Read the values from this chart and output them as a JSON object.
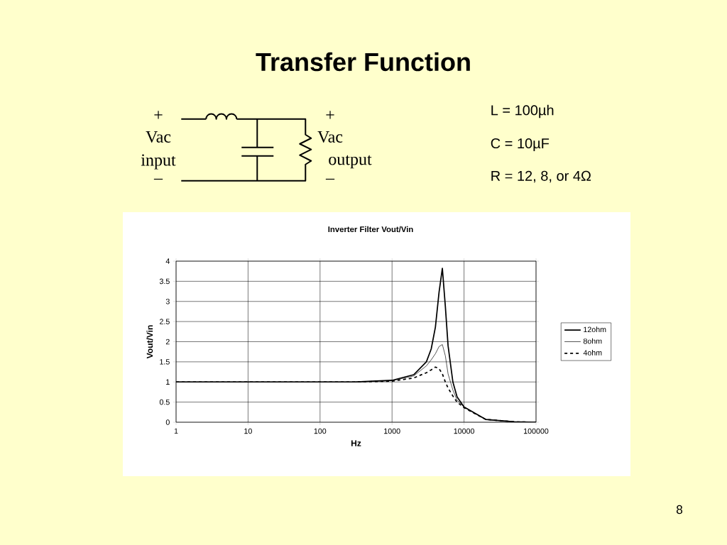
{
  "chart_data": {
    "type": "line",
    "title": "Transfer Function",
    "subtitle": "Inverter Filter Vout/Vin",
    "xlabel": "Hz",
    "ylabel": "Vout/Vin",
    "log": "x",
    "xlim": [
      1,
      100000
    ],
    "ylim": [
      0,
      4
    ],
    "xticks": [
      1,
      10,
      100,
      1000,
      10000,
      100000
    ],
    "yticks": [
      0,
      0.5,
      1,
      1.5,
      2,
      2.5,
      3,
      3.5,
      4
    ],
    "grid": true,
    "legend": "right",
    "marker": "none",
    "x": [
      1,
      10,
      100,
      300,
      1000,
      2000,
      3000,
      3500,
      4000,
      4500,
      5000,
      5500,
      6000,
      7000,
      8000,
      10000,
      20000,
      50000,
      100000
    ],
    "series": [
      {
        "name": "12ohm",
        "color": "#000000",
        "line_style": "solid",
        "values": [
          1,
          1,
          1,
          1,
          1.04,
          1.18,
          1.5,
          1.82,
          2.36,
          3.23,
          3.82,
          2.88,
          1.9,
          1.0,
          0.63,
          0.38,
          0.07,
          0.01,
          0
        ]
      },
      {
        "name": "8ohm",
        "color": "#000000",
        "line_style": "solid",
        "values": [
          1,
          1,
          1,
          1,
          1.03,
          1.15,
          1.4,
          1.55,
          1.7,
          1.88,
          1.93,
          1.65,
          1.2,
          0.8,
          0.55,
          0.38,
          0.07,
          0.01,
          0
        ]
      },
      {
        "name": "4ohm",
        "color": "#000000",
        "line_style": "dashed",
        "values": [
          1,
          1,
          1,
          1,
          1.02,
          1.1,
          1.23,
          1.3,
          1.37,
          1.33,
          1.2,
          1.0,
          0.85,
          0.65,
          0.5,
          0.36,
          0.07,
          0.01,
          0
        ]
      }
    ],
    "annotations": [
      "+",
      "Vac",
      "input",
      "–",
      "+",
      "Vac",
      "output",
      "–",
      "L = 100µh",
      "C = 10µF",
      "R = 12, 8, or 4Ω",
      "8"
    ]
  }
}
